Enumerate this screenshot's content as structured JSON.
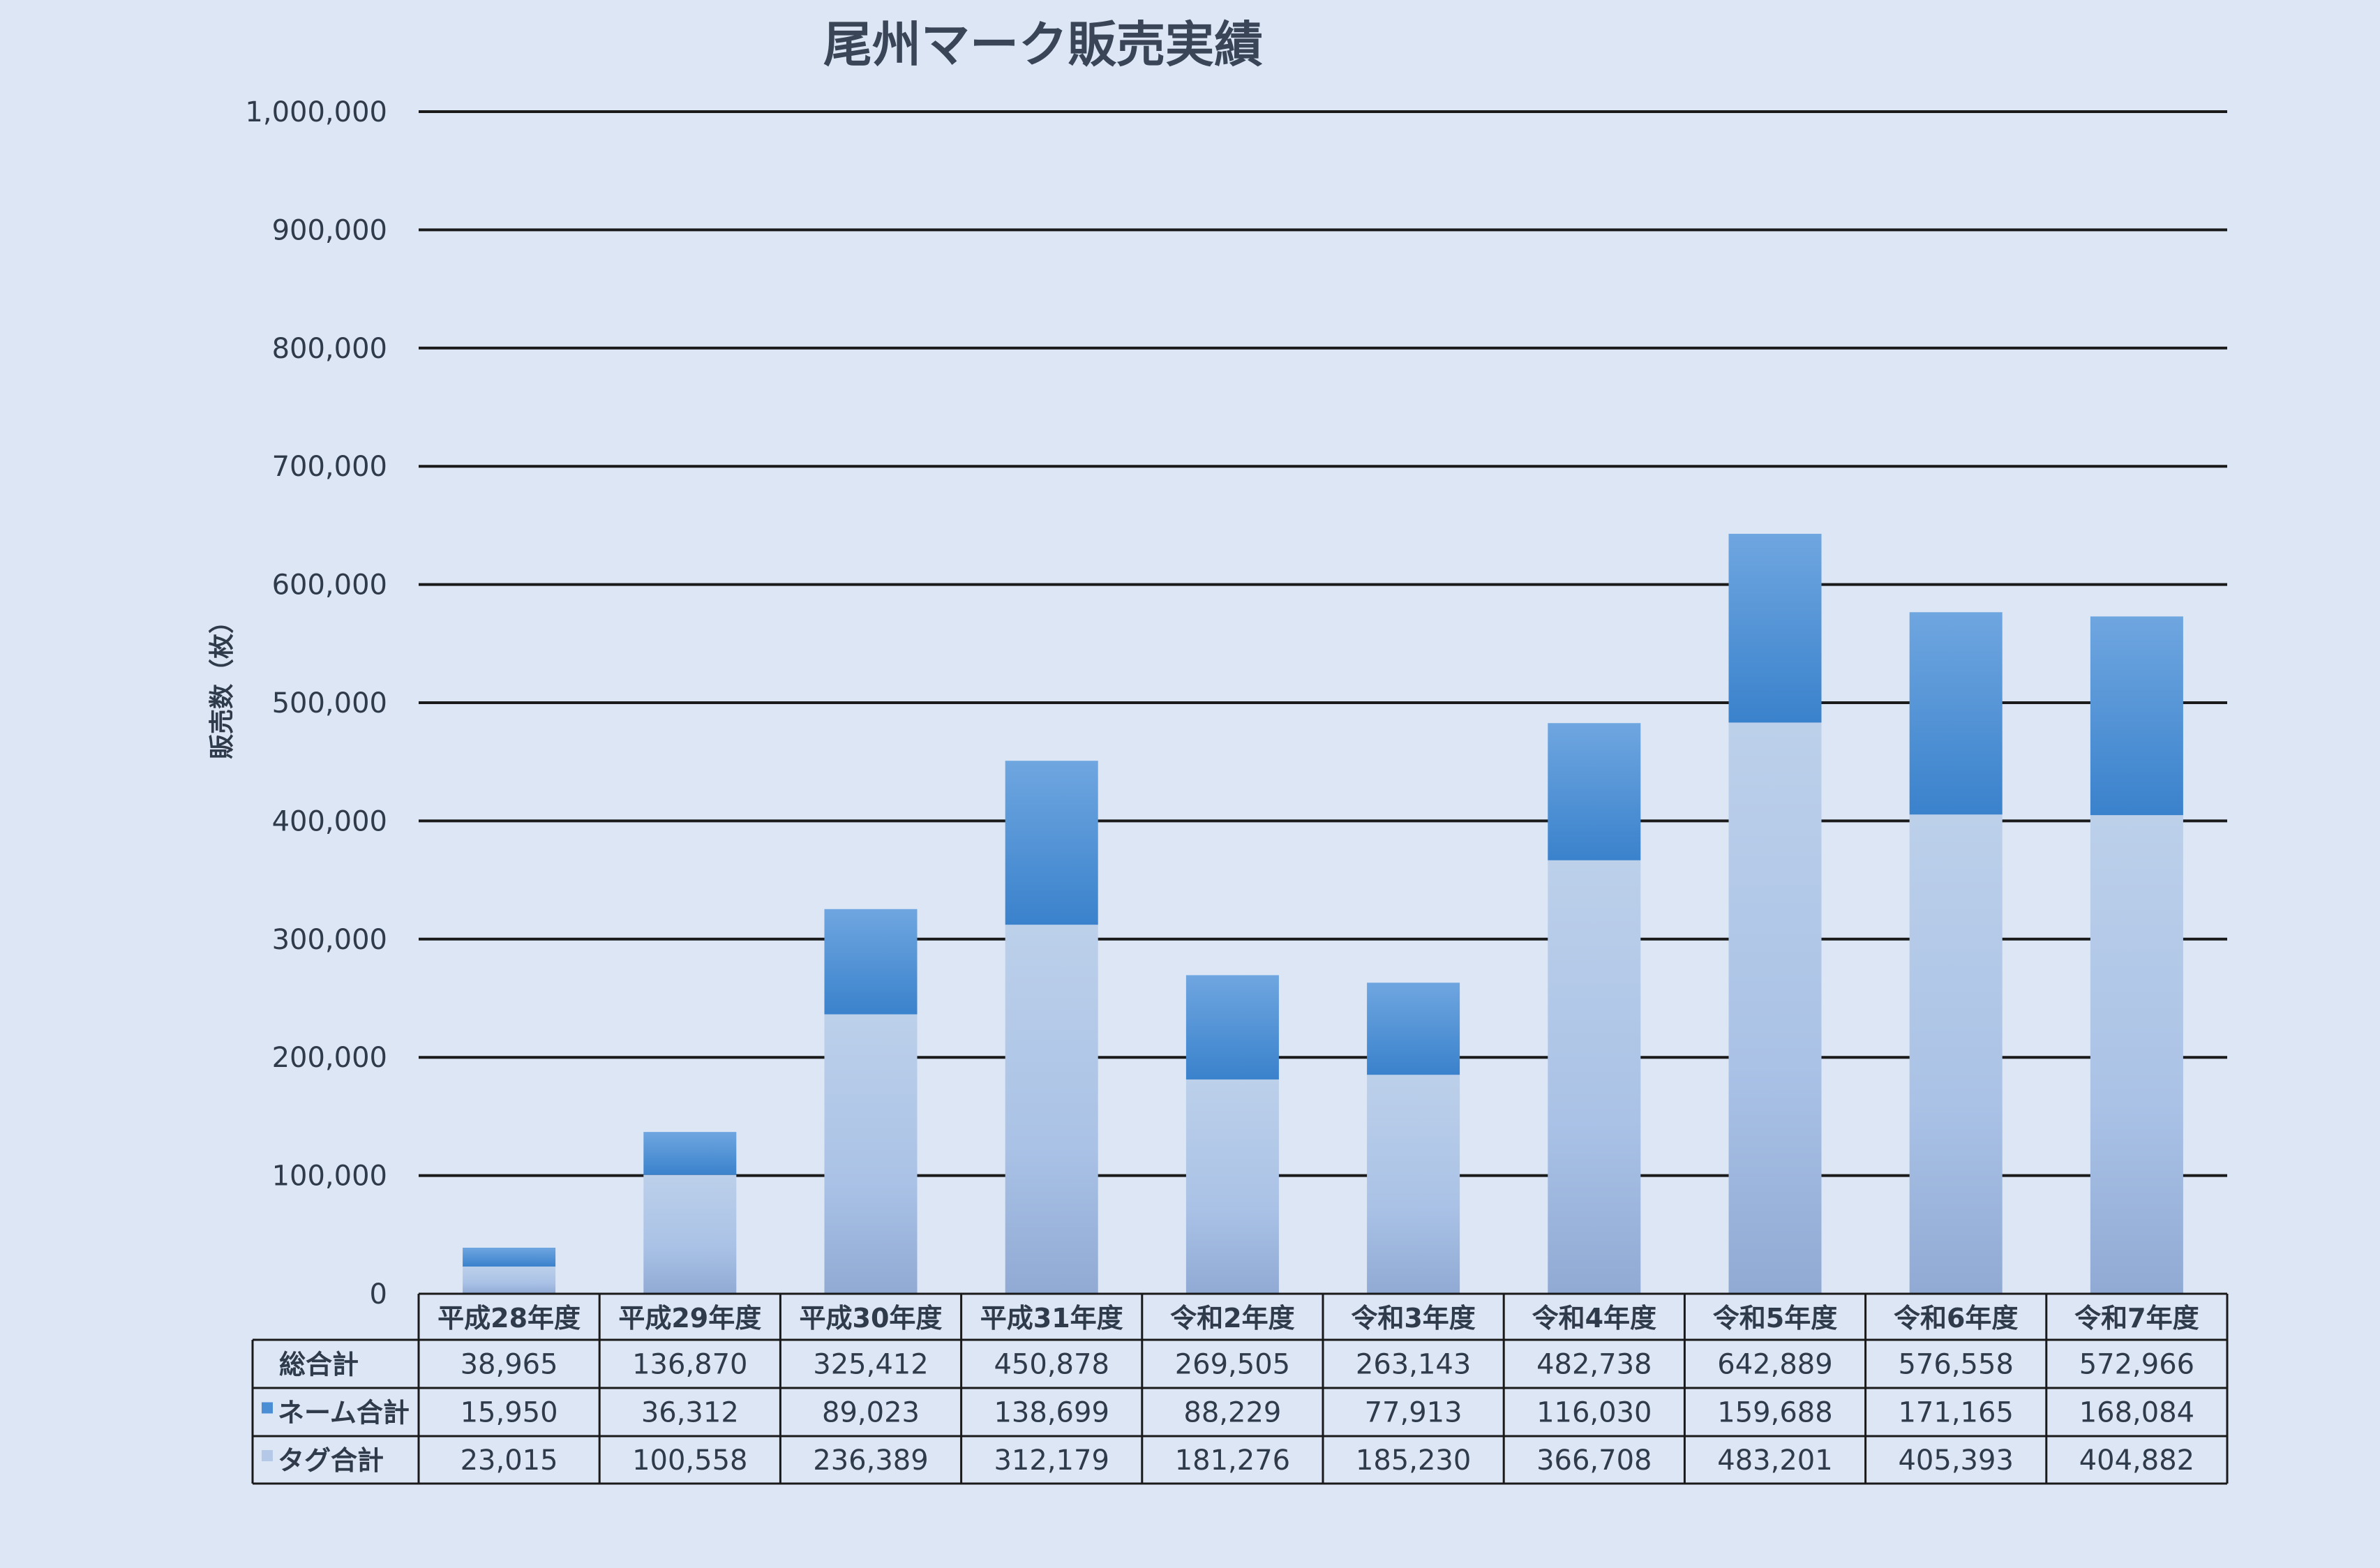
{
  "chart_data": {
    "type": "bar",
    "stacked": true,
    "title": "尾州マーク販売実績",
    "ylabel": "販売数（枚）",
    "xlabel": "",
    "ylim": [
      0,
      1000000
    ],
    "yticks": [
      "0",
      "100,000",
      "200,000",
      "300,000",
      "400,000",
      "500,000",
      "600,000",
      "700,000",
      "800,000",
      "900,000",
      "1,000,000"
    ],
    "grid": true,
    "legend": "data-table",
    "categories": [
      "平成28年度",
      "平成29年度",
      "平成30年度",
      "平成31年度",
      "令和2年度",
      "令和3年度",
      "令和4年度",
      "令和5年度",
      "令和6年度",
      "令和7年度"
    ],
    "series": [
      {
        "name": "タグ合計",
        "color": "#b4c9e8",
        "values": [
          23015,
          100558,
          236389,
          312179,
          181276,
          185230,
          366708,
          483201,
          405393,
          404882
        ],
        "labels": [
          "23,015",
          "100,558",
          "236,389",
          "312,179",
          "181,276",
          "185,230",
          "366,708",
          "483,201",
          "405,393",
          "404,882"
        ]
      },
      {
        "name": "ネーム合計",
        "color": "#4a8fd6",
        "values": [
          15950,
          36312,
          89023,
          138699,
          88229,
          77913,
          116030,
          159688,
          171165,
          168084
        ],
        "labels": [
          "15,950",
          "36,312",
          "89,023",
          "138,699",
          "88,229",
          "77,913",
          "116,030",
          "159,688",
          "171,165",
          "168,084"
        ]
      }
    ],
    "totals": {
      "name": "総合計",
      "labels": [
        "38,965",
        "136,870",
        "325,412",
        "450,878",
        "269,505",
        "263,143",
        "482,738",
        "642,889",
        "576,558",
        "572,966"
      ]
    }
  }
}
